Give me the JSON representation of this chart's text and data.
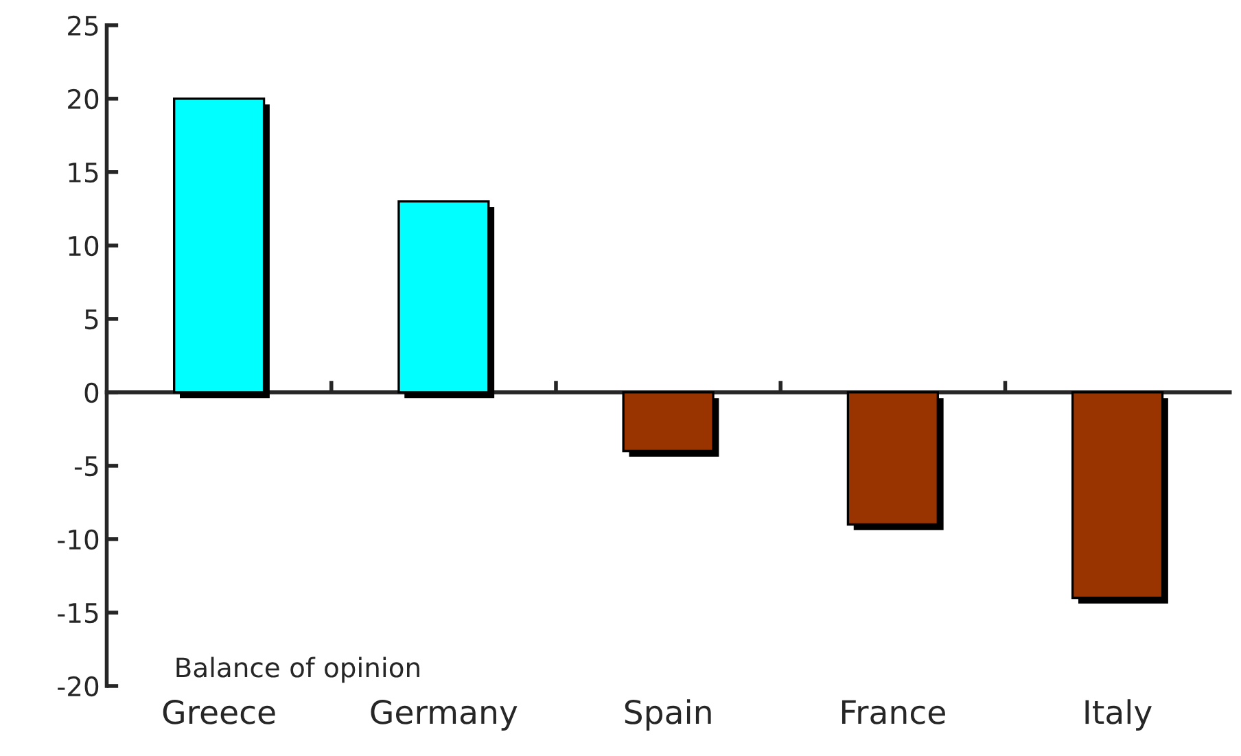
{
  "chart_data": {
    "type": "bar",
    "categories": [
      "Greece",
      "Germany",
      "Spain",
      "France",
      "Italy"
    ],
    "values": [
      20,
      13,
      -4,
      -9,
      -14
    ],
    "colors": [
      "#00ffff",
      "#00ffff",
      "#993300",
      "#993300",
      "#993300"
    ],
    "ylim": [
      -20,
      25
    ],
    "yticks": [
      -20,
      -15,
      -10,
      -5,
      0,
      5,
      10,
      15,
      20,
      25
    ],
    "annotations": [
      "Balance of opinion"
    ],
    "legend": false
  }
}
